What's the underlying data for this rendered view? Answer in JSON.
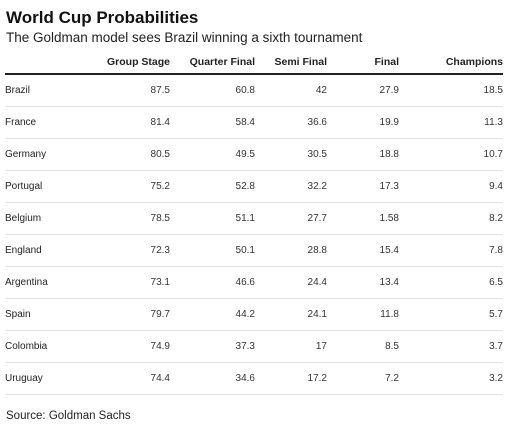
{
  "title": "World Cup Probabilities",
  "subtitle": "The Goldman model sees Brazil winning a sixth tournament",
  "source": "Source: Goldman Sachs",
  "chart_data": {
    "type": "table",
    "title": "World Cup Probabilities",
    "subtitle": "The Goldman model sees Brazil winning a sixth tournament",
    "columns": [
      "",
      "Group Stage",
      "Quarter Final",
      "Semi Final",
      "Final",
      "Champions"
    ],
    "rows": [
      [
        "Brazil",
        "87.5",
        "60.8",
        "42",
        "27.9",
        "18.5"
      ],
      [
        "France",
        "81.4",
        "58.4",
        "36.6",
        "19.9",
        "11.3"
      ],
      [
        "Germany",
        "80.5",
        "49.5",
        "30.5",
        "18.8",
        "10.7"
      ],
      [
        "Portugal",
        "75.2",
        "52.8",
        "32.2",
        "17.3",
        "9.4"
      ],
      [
        "Belgium",
        "78.5",
        "51.1",
        "27.7",
        "1.58",
        "8.2"
      ],
      [
        "England",
        "72.3",
        "50.1",
        "28.8",
        "15.4",
        "7.8"
      ],
      [
        "Argentina",
        "73.1",
        "46.6",
        "24.4",
        "13.4",
        "6.5"
      ],
      [
        "Spain",
        "79.7",
        "44.2",
        "24.1",
        "11.8",
        "5.7"
      ],
      [
        "Colombia",
        "74.9",
        "37.3",
        "17",
        "8.5",
        "3.7"
      ],
      [
        "Uruguay",
        "74.4",
        "34.6",
        "17.2",
        "7.2",
        "3.2"
      ]
    ]
  }
}
